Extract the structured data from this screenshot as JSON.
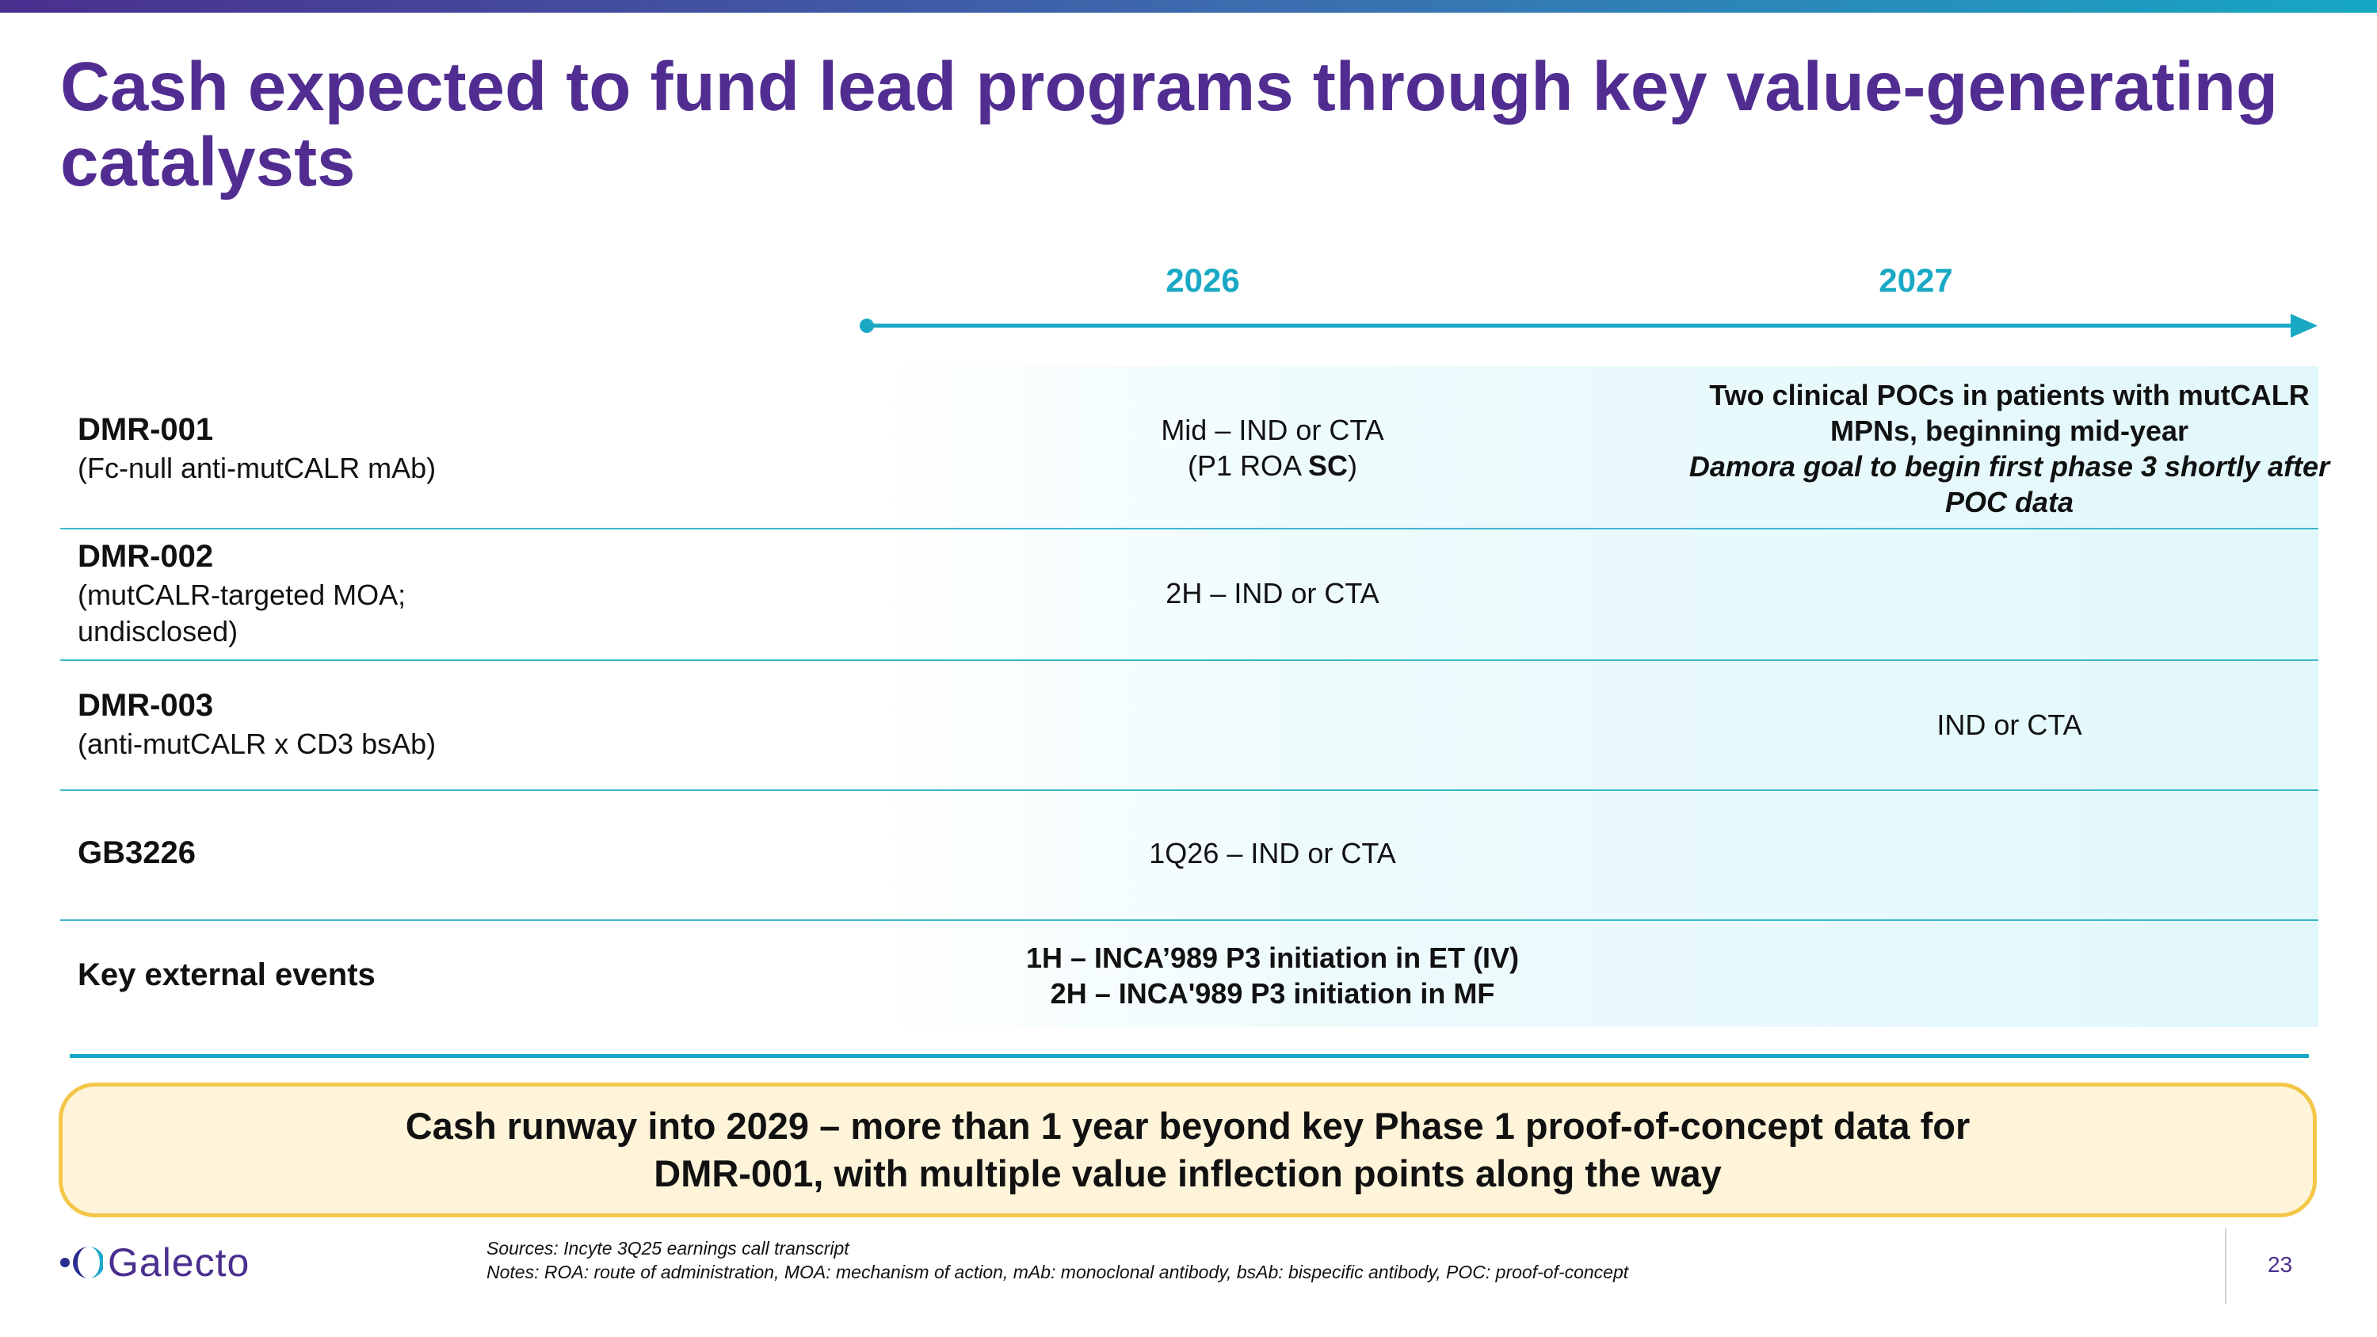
{
  "title": "Cash expected to fund lead programs through key value-generating catalysts",
  "timeline": {
    "years": [
      "2026",
      "2027"
    ],
    "color": "#19a9c4"
  },
  "rows": [
    {
      "name": "DMR-001",
      "sub": [
        "(Fc-null anti-mutCALR mAb)"
      ],
      "y2026": {
        "line1": "Mid – IND or CTA",
        "line2_pre": "(P1 ROA ",
        "line2_bold": "SC",
        "line2_post": ")"
      },
      "y2027": {
        "bold1": "Two clinical POCs in patients with mutCALR",
        "bold2": "MPNs, beginning mid-year",
        "ital1": "Damora goal to begin first phase 3 shortly after",
        "ital2": "POC data"
      }
    },
    {
      "name": "DMR-002",
      "sub": [
        "(mutCALR-targeted MOA;",
        "undisclosed)"
      ],
      "y2026": "2H – IND or CTA"
    },
    {
      "name": "DMR-003",
      "sub": [
        "(anti-mutCALR x CD3 bsAb)"
      ],
      "y2027": "IND or CTA"
    },
    {
      "name": "GB3226",
      "y2026": "1Q26 – IND or CTA"
    },
    {
      "name": "Key external events",
      "y2026": [
        "1H – INCA’989 P3 initiation in ET (IV)",
        "2H – INCA'989 P3 initiation in MF"
      ]
    }
  ],
  "callout": {
    "line1": "Cash runway into 2029 – more than 1 year beyond key Phase 1 proof-of-concept data for",
    "line2": "DMR-001, with multiple value inflection points along the way"
  },
  "logo": {
    "text": "Galecto"
  },
  "notes": {
    "sources": "Sources: Incyte 3Q25 earnings call transcript",
    "notes": "Notes: ROA: route of administration, MOA: mechanism of action, mAb: monoclonal antibody, bsAb: bispecific antibody, POC: proof-of-concept"
  },
  "page_number": "23",
  "colors": {
    "title": "#522d91",
    "accent": "#19a9c4",
    "callout_border": "#f3c648",
    "callout_bg": "#fef4d9"
  }
}
